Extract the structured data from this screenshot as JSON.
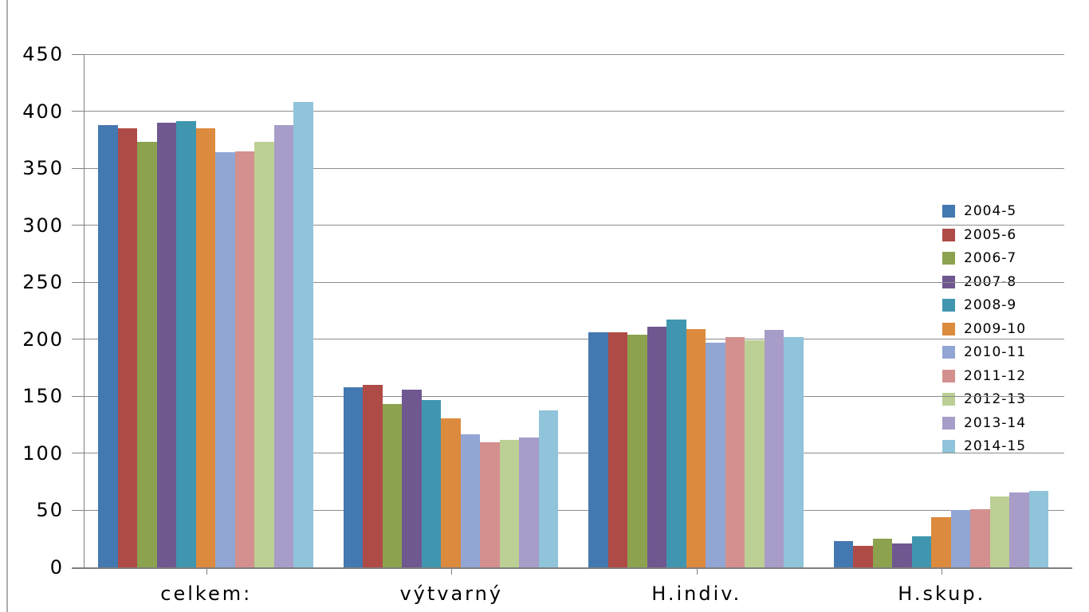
{
  "chart_data": {
    "type": "bar",
    "title": "",
    "xlabel": "",
    "ylabel": "",
    "categories": [
      "celkem:",
      "výtvarný",
      "H.indiv.",
      "H.skup."
    ],
    "series": [
      {
        "name": "2004-5",
        "color": "#4478B0",
        "values": [
          388,
          158,
          206,
          23
        ]
      },
      {
        "name": "2005-6",
        "color": "#AF4B47",
        "values": [
          385,
          160,
          206,
          19
        ]
      },
      {
        "name": "2006-7",
        "color": "#8CA24F",
        "values": [
          373,
          143,
          204,
          25
        ]
      },
      {
        "name": "2007-8",
        "color": "#6F5790",
        "values": [
          390,
          156,
          211,
          21
        ]
      },
      {
        "name": "2008-9",
        "color": "#4096AF",
        "values": [
          391,
          147,
          217,
          27
        ]
      },
      {
        "name": "2009-10",
        "color": "#DC8A3E",
        "values": [
          385,
          131,
          209,
          44
        ]
      },
      {
        "name": "2010-11",
        "color": "#92A6D4",
        "values": [
          364,
          117,
          197,
          50
        ]
      },
      {
        "name": "2011-12",
        "color": "#D4908E",
        "values": [
          365,
          110,
          202,
          51
        ]
      },
      {
        "name": "2012-13",
        "color": "#BCCF94",
        "values": [
          373,
          112,
          199,
          62
        ]
      },
      {
        "name": "2013-14",
        "color": "#A79DC8",
        "values": [
          388,
          114,
          208,
          66
        ]
      },
      {
        "name": "2014-15",
        "color": "#90C4DA",
        "values": [
          408,
          138,
          202,
          67
        ]
      }
    ],
    "ylim": [
      0,
      450
    ],
    "ytick_step": 50,
    "grid": true,
    "legend_position": "right",
    "colors": {
      "gridline": "#8c8c8c",
      "axis": "#7f7f7f",
      "chart_border": "#adadad",
      "text": "#000000"
    }
  }
}
